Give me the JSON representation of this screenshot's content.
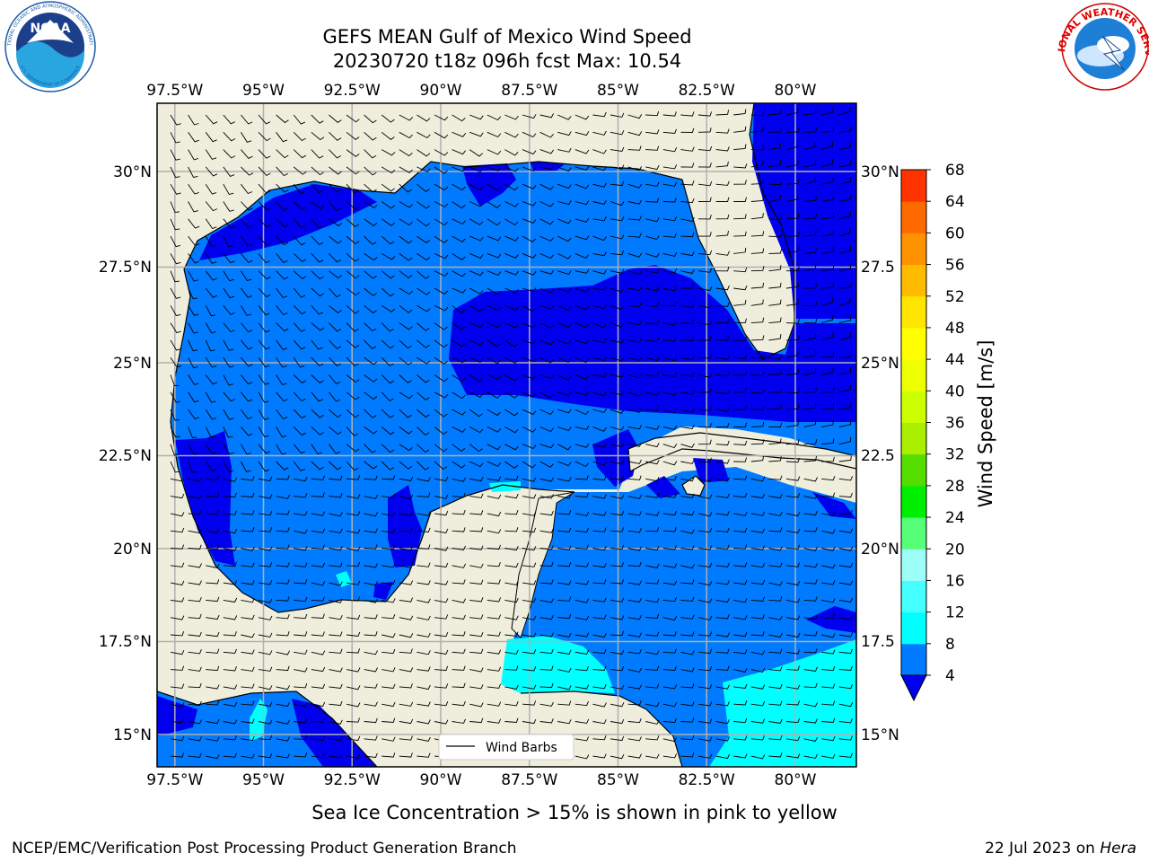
{
  "title": {
    "line1": "GEFS MEAN Gulf of Mexico Wind Speed",
    "line2": "20230720 t18z 096h fcst   Max: 10.54"
  },
  "logos": {
    "noaa": {
      "text": "NOAA",
      "ring_text": "NATIONAL OCEANIC AND ATMOSPHERIC ADMINISTRATION",
      "ring_text_bottom": "U.S. DEPARTMENT OF COMMERCE"
    },
    "nws": {
      "ring_text": "NATIONAL WEATHER SERVICE"
    }
  },
  "map": {
    "lon_labels": [
      "97.5°W",
      "95°W",
      "92.5°W",
      "90°W",
      "87.5°W",
      "85°W",
      "82.5°W",
      "80°W"
    ],
    "lat_labels_left": [
      "30°N",
      "27.5°N",
      "25°N",
      "22.5°N",
      "20°N",
      "17.5°N",
      "15°N"
    ],
    "lat_labels_right": [
      "30°N",
      "27.5",
      "25°N",
      "22.5",
      "20°N",
      "17.5",
      "15°N"
    ],
    "extent": {
      "lon": [
        -98,
        -78.3
      ],
      "lat": [
        14,
        31.7
      ]
    },
    "colors": {
      "land": "#efeedc",
      "w4": "#007bff",
      "w0": "#0000ee",
      "w8": "#00ffff",
      "grid": "#b0b0b0"
    },
    "legend": {
      "label": "Wind Barbs"
    }
  },
  "colorbar": {
    "label": "Wind Speed [m/s]",
    "ticks": [
      "4",
      "8",
      "12",
      "16",
      "20",
      "24",
      "28",
      "32",
      "36",
      "40",
      "44",
      "48",
      "52",
      "56",
      "60",
      "64",
      "68"
    ],
    "colors": [
      "#007bff",
      "#00ffff",
      "#45ffff",
      "#9dfff8",
      "#55ff77",
      "#00ee00",
      "#55dd00",
      "#aaee00",
      "#ccff00",
      "#eeff00",
      "#ffff00",
      "#ffe600",
      "#ffbb00",
      "#ff9200",
      "#ff6a00",
      "#ff3300"
    ],
    "extend_color": "#0000ee"
  },
  "footer": {
    "note": "Sea Ice Concentration > 15% is shown in pink to yellow",
    "left": "NCEP/EMC/Verification Post Processing Product Generation Branch",
    "right_prefix": "22 Jul 2023 on ",
    "right_host": "Hera"
  }
}
